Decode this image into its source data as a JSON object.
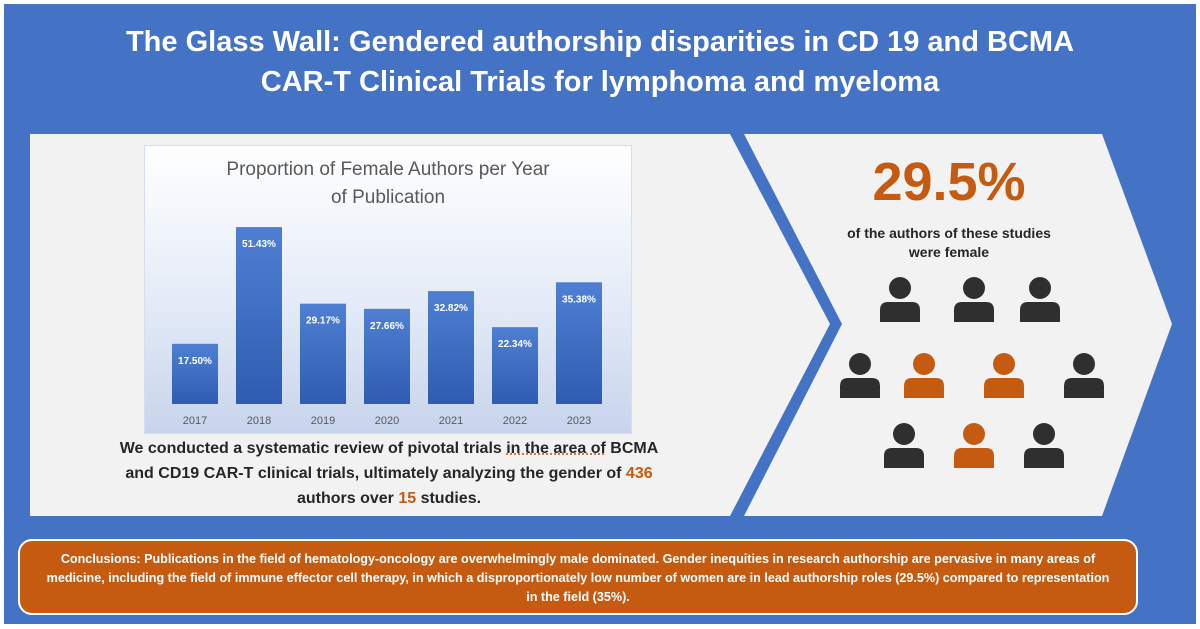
{
  "header": {
    "title_line1": "The Glass Wall: Gendered authorship disparities in CD 19 and BCMA",
    "title_line2": "CAR-T Clinical Trials for lymphoma and myeloma"
  },
  "chart_data": {
    "type": "bar",
    "title_line1": "Proportion of Female Authors per Year",
    "title_line2": "of Publication",
    "categories": [
      "2017",
      "2018",
      "2019",
      "2020",
      "2021",
      "2022",
      "2023"
    ],
    "values": [
      17.5,
      51.43,
      29.17,
      27.66,
      32.82,
      22.34,
      35.38
    ],
    "value_labels": [
      "17.50%",
      "51.43%",
      "29.17%",
      "27.66%",
      "32.82%",
      "22.34%",
      "35.38%"
    ],
    "xlabel": "",
    "ylabel": "",
    "ylim": [
      0,
      60
    ],
    "grid": false,
    "legend": "none",
    "bar_color": "#4472c4"
  },
  "summary": {
    "part1": "We conducted a systematic review of pivotal trials ",
    "underlined": "in the area of",
    "part2": " BCMA and CD19 CAR-T clinical trials, ultimately analyzing the gender of ",
    "authors_count": "436",
    "part3": " authors over ",
    "studies_count": "15",
    "part4": " studies."
  },
  "highlight": {
    "percent": "29.5%",
    "caption_line1": "of the authors of these studies",
    "caption_line2": "were female"
  },
  "people": {
    "icon": "person-icon",
    "rows": [
      [
        "male",
        "male",
        "male"
      ],
      [
        "male",
        "female",
        "female",
        "male"
      ],
      [
        "male",
        "female",
        "male"
      ]
    ],
    "male_color": "#2f2f2f",
    "female_color": "#c55a11"
  },
  "conclusions": {
    "text": "Conclusions: Publications in the field of hematology-oncology are overwhelmingly male dominated. Gender inequities in research authorship are pervasive in many areas of medicine, including the field of immune effector cell therapy, in which a disproportionately low number of women are in lead authorship roles (29.5%) compared to representation in the field (35%)."
  },
  "colors": {
    "background": "#4472c4",
    "panel": "#f2f2f2",
    "accent": "#c55a11",
    "text_dark": "#262626"
  }
}
